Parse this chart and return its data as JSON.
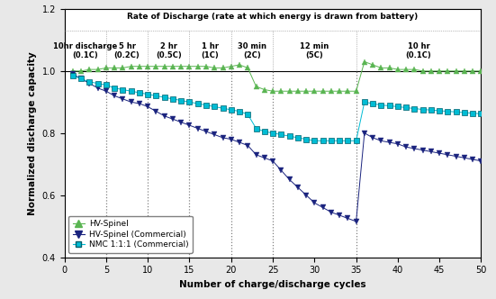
{
  "title_top": "Rate of Discharge (rate at which energy is drawn from battery)",
  "section_labels": [
    "10hr discharge\n(0.1C)",
    "5 hr\n(0.2C)",
    "2 hr\n(0.5C)",
    "1 hr\n(1C)",
    "30 min\n(2C)",
    "12 min\n(5C)",
    "10 hr\n(0.1C)"
  ],
  "section_centers": [
    2.5,
    7.5,
    12.5,
    17.5,
    22.5,
    30.0,
    42.5
  ],
  "vlines": [
    5,
    10,
    15,
    20,
    25,
    35
  ],
  "xlabel": "Number of charge/discharge cycles",
  "ylabel": "Normalized discharge capacity",
  "xlim": [
    0,
    50
  ],
  "ylim": [
    0.4,
    1.2
  ],
  "yticks": [
    0.4,
    0.6,
    0.8,
    1.0,
    1.2
  ],
  "xticks": [
    0,
    5,
    10,
    15,
    20,
    25,
    30,
    35,
    40,
    45,
    50
  ],
  "hv_spinel_color": "#5ab552",
  "hv_spinel_comm_color": "#1a237e",
  "nmc_color": "#00BCD4",
  "hv_spinel_x": [
    1,
    2,
    3,
    4,
    5,
    6,
    7,
    8,
    9,
    10,
    11,
    12,
    13,
    14,
    15,
    16,
    17,
    18,
    19,
    20,
    21,
    22,
    23,
    24,
    25,
    26,
    27,
    28,
    29,
    30,
    31,
    32,
    33,
    34,
    35,
    36,
    37,
    38,
    39,
    40,
    41,
    42,
    43,
    44,
    45,
    46,
    47,
    48,
    49,
    50
  ],
  "hv_spinel_y": [
    1.0,
    1.0,
    1.005,
    1.005,
    1.01,
    1.01,
    1.01,
    1.015,
    1.015,
    1.015,
    1.015,
    1.015,
    1.015,
    1.015,
    1.015,
    1.015,
    1.015,
    1.01,
    1.01,
    1.015,
    1.02,
    1.01,
    0.95,
    0.94,
    0.935,
    0.935,
    0.935,
    0.935,
    0.935,
    0.935,
    0.935,
    0.935,
    0.935,
    0.935,
    0.935,
    1.03,
    1.02,
    1.01,
    1.01,
    1.005,
    1.005,
    1.005,
    1.0,
    1.0,
    1.0,
    1.0,
    1.0,
    1.0,
    1.0,
    1.0
  ],
  "hv_spinel_comm_x": [
    1,
    2,
    3,
    4,
    5,
    6,
    7,
    8,
    9,
    10,
    11,
    12,
    13,
    14,
    15,
    16,
    17,
    18,
    19,
    20,
    21,
    22,
    23,
    24,
    25,
    26,
    27,
    28,
    29,
    30,
    31,
    32,
    33,
    34,
    35,
    36,
    37,
    38,
    39,
    40,
    41,
    42,
    43,
    44,
    45,
    46,
    47,
    48,
    49,
    50
  ],
  "hv_spinel_comm_y": [
    0.99,
    0.975,
    0.96,
    0.945,
    0.935,
    0.92,
    0.91,
    0.9,
    0.895,
    0.885,
    0.87,
    0.855,
    0.845,
    0.835,
    0.825,
    0.815,
    0.805,
    0.795,
    0.785,
    0.78,
    0.77,
    0.76,
    0.73,
    0.72,
    0.71,
    0.68,
    0.65,
    0.625,
    0.6,
    0.575,
    0.56,
    0.545,
    0.535,
    0.525,
    0.515,
    0.8,
    0.785,
    0.775,
    0.77,
    0.765,
    0.755,
    0.75,
    0.745,
    0.74,
    0.735,
    0.73,
    0.725,
    0.72,
    0.715,
    0.71
  ],
  "nmc_x": [
    1,
    2,
    3,
    4,
    5,
    6,
    7,
    8,
    9,
    10,
    11,
    12,
    13,
    14,
    15,
    16,
    17,
    18,
    19,
    20,
    21,
    22,
    23,
    24,
    25,
    26,
    27,
    28,
    29,
    30,
    31,
    32,
    33,
    34,
    35,
    36,
    37,
    38,
    39,
    40,
    41,
    42,
    43,
    44,
    45,
    46,
    47,
    48,
    49,
    50
  ],
  "nmc_y": [
    0.985,
    0.975,
    0.965,
    0.96,
    0.955,
    0.945,
    0.94,
    0.935,
    0.93,
    0.925,
    0.92,
    0.915,
    0.91,
    0.905,
    0.9,
    0.895,
    0.89,
    0.885,
    0.88,
    0.875,
    0.87,
    0.86,
    0.815,
    0.805,
    0.8,
    0.795,
    0.79,
    0.785,
    0.78,
    0.775,
    0.775,
    0.775,
    0.775,
    0.775,
    0.775,
    0.9,
    0.895,
    0.89,
    0.888,
    0.885,
    0.882,
    0.879,
    0.876,
    0.874,
    0.872,
    0.87,
    0.868,
    0.866,
    0.864,
    0.862
  ],
  "bg_color": "#e8e8e8",
  "plot_bg": "#ffffff"
}
